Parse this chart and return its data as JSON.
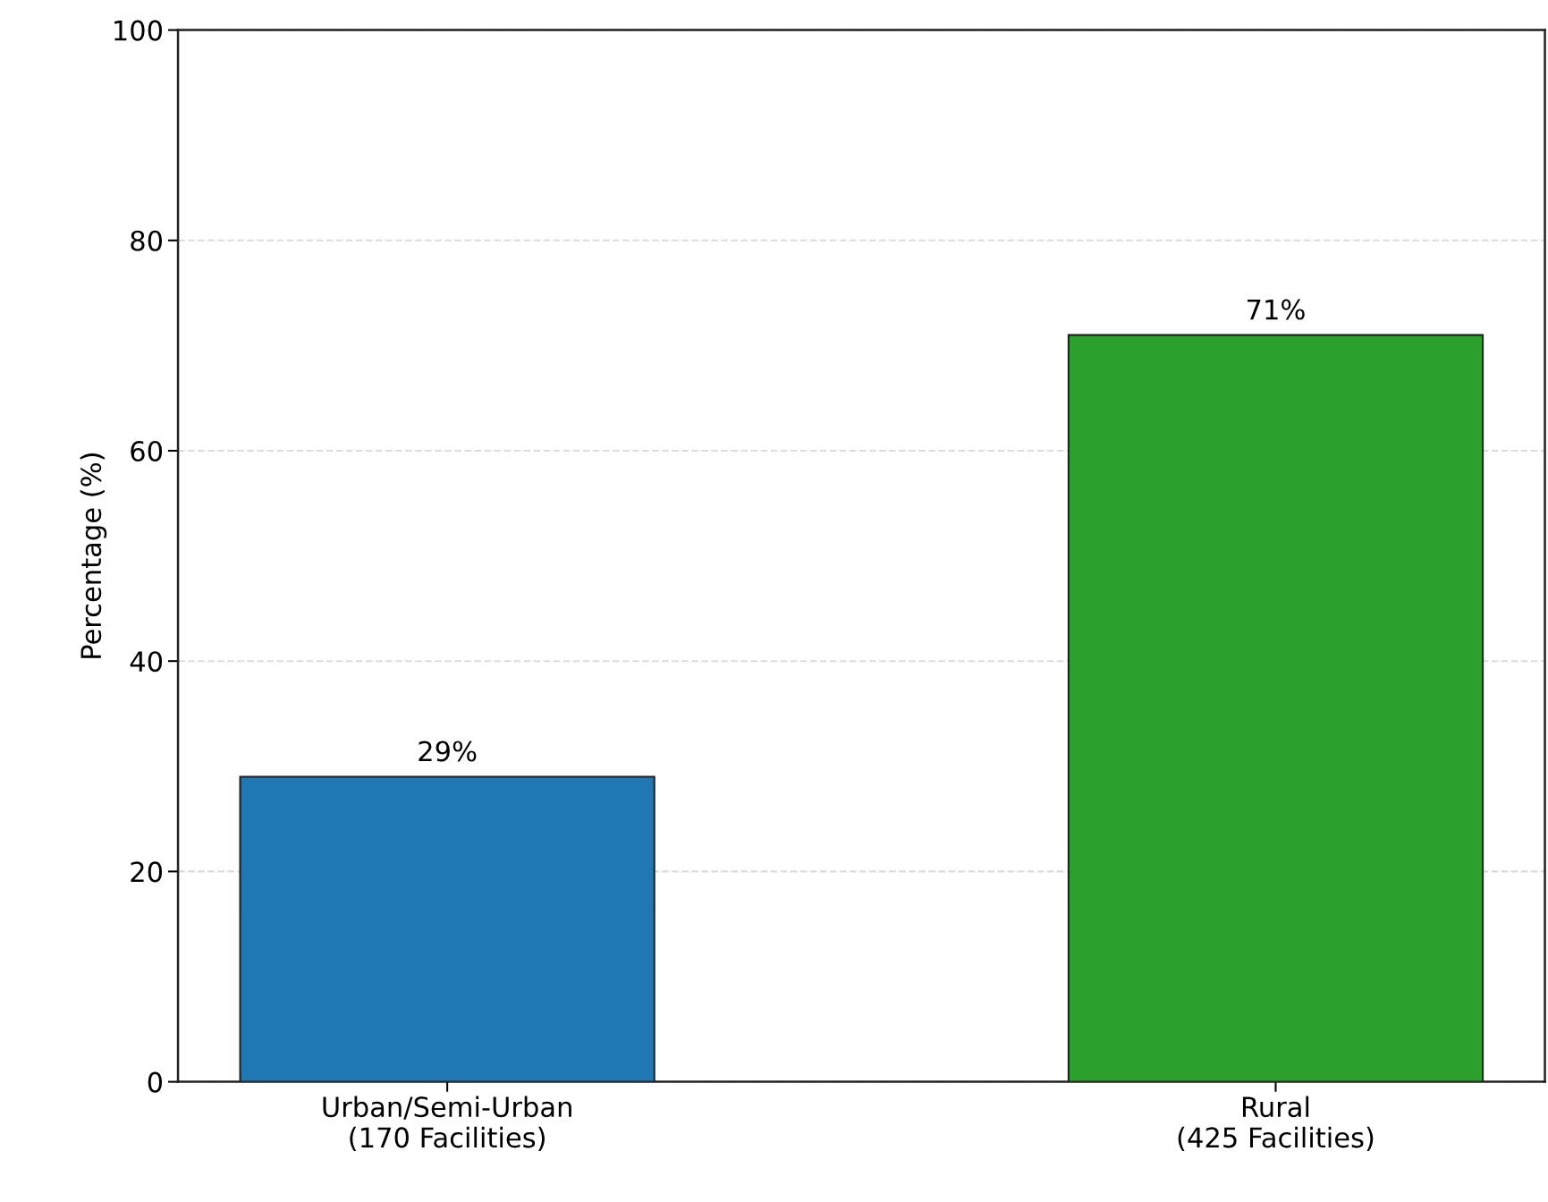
{
  "chart_data": {
    "type": "bar",
    "ylabel": "Percentage (%)",
    "categories": [
      "Urban/Semi-Urban\n(170 Facilities)",
      "Rural\n(425 Facilities)"
    ],
    "values": [
      29,
      71
    ],
    "colors": [
      "#1f77b4",
      "#2ca02c"
    ],
    "value_labels": [
      "29%",
      "71%"
    ],
    "ylim": [
      0,
      100
    ],
    "yticks": [
      0,
      20,
      40,
      60,
      80,
      100
    ],
    "grid": "y",
    "legend": false
  }
}
